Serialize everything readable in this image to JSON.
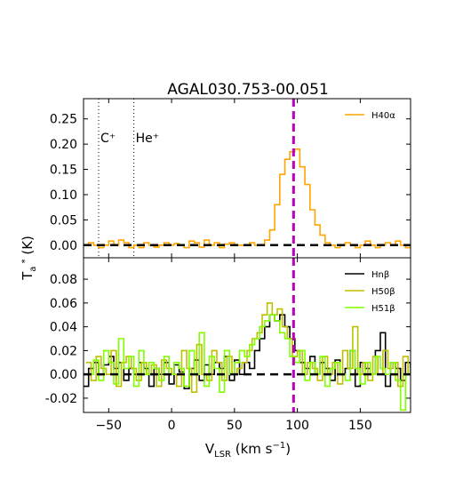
{
  "chart_data": {
    "title": "AGAL030.753-00.051",
    "xlabel": "V_LSR (km s^-1)",
    "ylabel": "T_a^* (K)",
    "xlim": [
      -70,
      190
    ],
    "x_ticks": [
      "-50",
      "0",
      "50",
      "100",
      "150"
    ],
    "reference_velocity": 97,
    "reference_color": "#bf00bf",
    "panels": [
      {
        "type": "line",
        "drawstyle": "steps",
        "ylim": [
          -0.025,
          0.29
        ],
        "y_ticks": [
          "0.25",
          "0.20",
          "0.15",
          "0.10",
          "0.05",
          "0.00"
        ],
        "legend_position": "top-right",
        "annotations": [
          {
            "text": "C⁺",
            "x": -58
          },
          {
            "text": "He⁺",
            "x": -30
          }
        ],
        "series": [
          {
            "name": "H40α",
            "color": "#ffa500",
            "x0": -70,
            "dx": 4,
            "values": [
              0.0,
              0.005,
              0.0,
              -0.005,
              0.0,
              0.008,
              0.0,
              0.01,
              0.005,
              -0.005,
              0.0,
              -0.005,
              0.005,
              0.0,
              -0.004,
              0.0,
              0.005,
              0.0,
              0.003,
              0.0,
              -0.005,
              0.008,
              0.005,
              -0.004,
              0.01,
              0.0,
              0.005,
              -0.005,
              0.002,
              0.005,
              0.0,
              0.0,
              0.0,
              0.005,
              0.0,
              0.0,
              0.01,
              0.03,
              0.08,
              0.14,
              0.17,
              0.185,
              0.19,
              0.155,
              0.12,
              0.07,
              0.04,
              0.02,
              0.005,
              0.0,
              -0.005,
              0.0,
              0.005,
              0.0,
              -0.005,
              0.0,
              0.008,
              0.0,
              -0.005,
              0.0,
              0.005,
              0.0,
              0.008,
              0.0,
              -0.005,
              0.0
            ]
          }
        ]
      },
      {
        "type": "line",
        "drawstyle": "steps",
        "ylim": [
          -0.032,
          0.098
        ],
        "y_ticks": [
          "0.08",
          "0.06",
          "0.04",
          "0.02",
          "0.00",
          "-0.02"
        ],
        "legend_position": "top-right",
        "series": [
          {
            "name": "Hnβ",
            "color": "#000000",
            "x0": -70,
            "dx": 4,
            "values": [
              -0.01,
              0.005,
              0.01,
              0.0,
              0.008,
              0.015,
              0.005,
              0.01,
              -0.005,
              0.005,
              0.0,
              0.01,
              0.005,
              -0.01,
              0.005,
              0.0,
              0.01,
              -0.008,
              0.008,
              0.002,
              -0.012,
              0.005,
              0.012,
              -0.005,
              0.008,
              0.0,
              0.01,
              0.005,
              0.015,
              -0.005,
              0.012,
              0.0,
              0.01,
              0.005,
              0.02,
              0.03,
              0.04,
              0.05,
              0.045,
              0.05,
              0.04,
              0.03,
              0.02,
              0.01,
              0.005,
              0.015,
              0.0,
              0.01,
              0.005,
              -0.005,
              0.012,
              0.0,
              0.005,
              0.02,
              -0.01,
              0.01,
              0.005,
              0.0,
              0.02,
              0.035,
              -0.01,
              0.01,
              0.005,
              -0.005,
              0.01,
              0.0
            ]
          },
          {
            "name": "H50β",
            "color": "#bfbf00",
            "x0": -68,
            "dx": 4,
            "values": [
              0.01,
              -0.005,
              0.015,
              0.005,
              0.0,
              0.02,
              -0.01,
              0.01,
              0.015,
              0.005,
              -0.005,
              0.01,
              0.0,
              0.008,
              -0.01,
              0.012,
              0.005,
              0.0,
              -0.01,
              0.02,
              0.005,
              -0.015,
              0.025,
              0.0,
              -0.005,
              0.02,
              0.01,
              -0.005,
              0.015,
              0.0,
              0.005,
              0.01,
              0.02,
              0.03,
              0.035,
              0.05,
              0.06,
              0.05,
              0.055,
              0.04,
              0.03,
              0.015,
              0.02,
              0.0,
              0.01,
              0.005,
              -0.005,
              0.015,
              0.0,
              0.01,
              -0.008,
              0.02,
              0.005,
              0.04,
              0.0,
              0.01,
              -0.005,
              0.015,
              0.0,
              0.02,
              0.005,
              0.01,
              -0.01,
              0.015,
              0.0
            ]
          },
          {
            "name": "H51β",
            "color": "#7fff00",
            "x0": -66,
            "dx": 4,
            "values": [
              0.0,
              0.012,
              -0.005,
              0.02,
              0.01,
              -0.008,
              0.03,
              0.005,
              0.015,
              -0.01,
              0.02,
              0.0,
              0.01,
              0.005,
              -0.005,
              0.015,
              0.0,
              0.01,
              0.005,
              -0.01,
              0.02,
              0.0,
              0.035,
              -0.01,
              0.015,
              0.005,
              -0.015,
              0.02,
              0.0,
              0.01,
              0.02,
              0.015,
              0.025,
              0.03,
              0.04,
              0.045,
              0.05,
              0.045,
              0.035,
              0.03,
              0.015,
              0.01,
              0.02,
              -0.005,
              0.01,
              0.0,
              0.015,
              -0.01,
              0.005,
              0.01,
              0.0,
              -0.005,
              0.02,
              0.005,
              -0.008,
              0.01,
              0.0,
              0.015,
              0.005,
              0.0,
              0.01,
              -0.005,
              -0.03,
              0.0,
              0.005
            ]
          }
        ]
      }
    ]
  }
}
